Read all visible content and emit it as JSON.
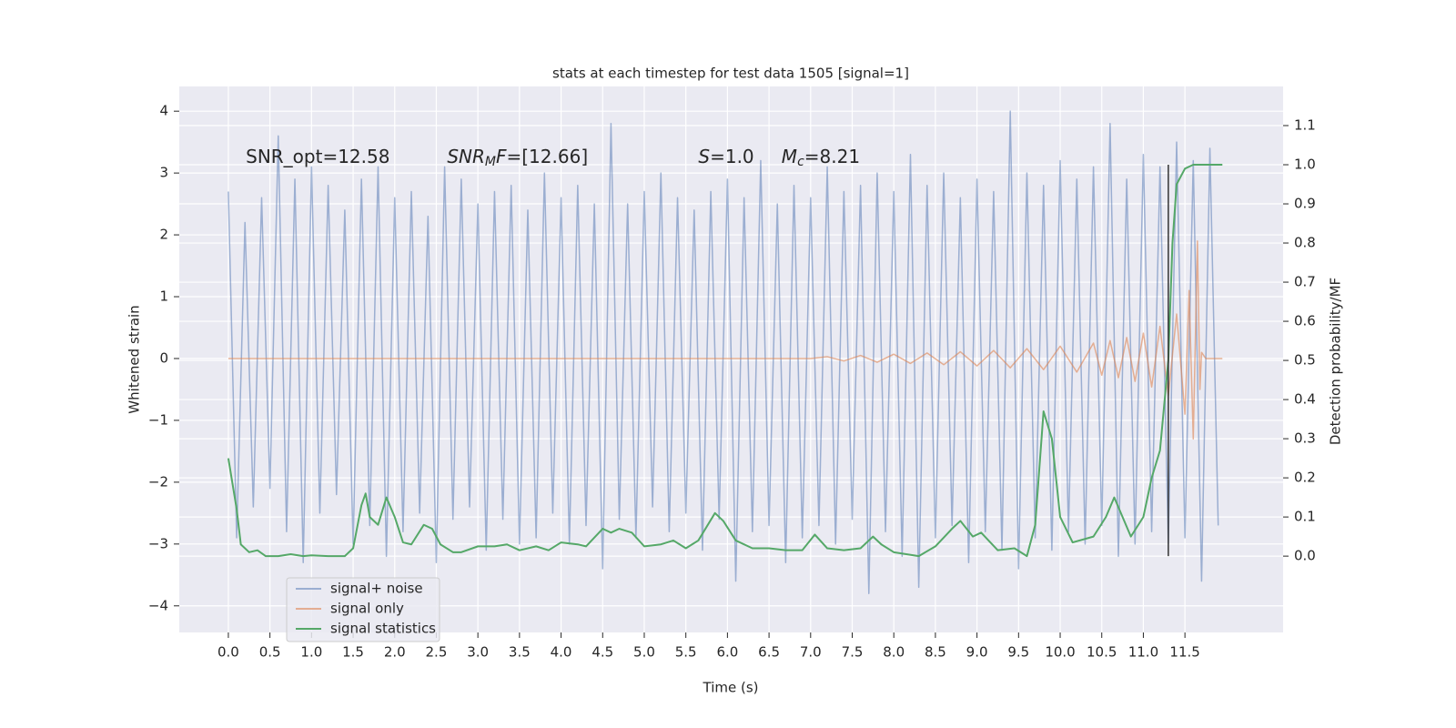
{
  "chart_data": {
    "type": "line",
    "title": "stats at each timestep for test data 1505 [signal=1]",
    "xlabel": "Time (s)",
    "ylabel": "Whitened strain",
    "y2label": "Detection probability/MF",
    "xlim": [
      -0.59,
      12.68
    ],
    "ylim": [
      -4.43,
      4.4
    ],
    "y2lim": [
      -0.195,
      1.2
    ],
    "xticks": [
      {
        "value": 0,
        "label": "0.0"
      },
      {
        "value": 0.5,
        "label": "0.5"
      },
      {
        "value": 1,
        "label": "1.0"
      },
      {
        "value": 1.5,
        "label": "1.5"
      },
      {
        "value": 2,
        "label": "2.0"
      },
      {
        "value": 2.5,
        "label": "2.5"
      },
      {
        "value": 3,
        "label": "3.0"
      },
      {
        "value": 3.5,
        "label": "3.5"
      },
      {
        "value": 4,
        "label": "4.0"
      },
      {
        "value": 4.5,
        "label": "4.5"
      },
      {
        "value": 5,
        "label": "5.0"
      },
      {
        "value": 5.5,
        "label": "5.5"
      },
      {
        "value": 6,
        "label": "6.0"
      },
      {
        "value": 6.5,
        "label": "6.5"
      },
      {
        "value": 7,
        "label": "7.0"
      },
      {
        "value": 7.5,
        "label": "7.5"
      },
      {
        "value": 8,
        "label": "8.0"
      },
      {
        "value": 8.5,
        "label": "8.5"
      },
      {
        "value": 9,
        "label": "9.0"
      },
      {
        "value": 9.5,
        "label": "9.5"
      },
      {
        "value": 10,
        "label": "10.0"
      },
      {
        "value": 10.5,
        "label": "10.5"
      },
      {
        "value": 11,
        "label": "11.0"
      },
      {
        "value": 11.5,
        "label": "11.5"
      }
    ],
    "yticks": [
      {
        "value": -4,
        "label": "−4"
      },
      {
        "value": -3,
        "label": "−3"
      },
      {
        "value": -2,
        "label": "−2"
      },
      {
        "value": -1,
        "label": "−1"
      },
      0,
      1,
      2,
      3,
      4
    ],
    "y2ticks": [
      {
        "value": 0,
        "label": "0.0"
      },
      {
        "value": 0.1,
        "label": "0.1"
      },
      {
        "value": 0.2,
        "label": "0.2"
      },
      {
        "value": 0.3,
        "label": "0.3"
      },
      {
        "value": 0.4,
        "label": "0.4"
      },
      {
        "value": 0.5,
        "label": "0.5"
      },
      {
        "value": 0.6,
        "label": "0.6"
      },
      {
        "value": 0.7,
        "label": "0.7"
      },
      {
        "value": 0.8,
        "label": "0.8"
      },
      {
        "value": 0.9,
        "label": "0.9"
      },
      {
        "value": 1,
        "label": "1.0"
      },
      {
        "value": 1.1,
        "label": "1.1"
      }
    ],
    "grid": true,
    "legend": "lower left",
    "series": [
      {
        "name": "signal+ noise",
        "color": "#4c72b0",
        "alpha": 0.5,
        "x": [
          0.0,
          0.1,
          0.2,
          0.3,
          0.4,
          0.5,
          0.6,
          0.7,
          0.8,
          0.9,
          1.0,
          1.1,
          1.2,
          1.3,
          1.4,
          1.5,
          1.6,
          1.7,
          1.8,
          1.9,
          2.0,
          2.1,
          2.2,
          2.3,
          2.4,
          2.5,
          2.6,
          2.7,
          2.8,
          2.9,
          3.0,
          3.1,
          3.2,
          3.3,
          3.4,
          3.5,
          3.6,
          3.7,
          3.8,
          3.9,
          4.0,
          4.1,
          4.2,
          4.3,
          4.4,
          4.5,
          4.6,
          4.7,
          4.8,
          4.9,
          5.0,
          5.1,
          5.2,
          5.3,
          5.4,
          5.5,
          5.6,
          5.7,
          5.8,
          5.9,
          6.0,
          6.1,
          6.2,
          6.3,
          6.4,
          6.5,
          6.6,
          6.7,
          6.8,
          6.9,
          7.0,
          7.1,
          7.2,
          7.3,
          7.4,
          7.5,
          7.6,
          7.7,
          7.8,
          7.9,
          8.0,
          8.1,
          8.2,
          8.3,
          8.4,
          8.5,
          8.6,
          8.7,
          8.8,
          8.9,
          9.0,
          9.1,
          9.2,
          9.3,
          9.4,
          9.5,
          9.6,
          9.7,
          9.8,
          9.9,
          10.0,
          10.1,
          10.2,
          10.3,
          10.4,
          10.5,
          10.6,
          10.7,
          10.8,
          10.9,
          11.0,
          11.1,
          11.2,
          11.3,
          11.4,
          11.5,
          11.6,
          11.7,
          11.8,
          11.9
        ],
        "values": [
          2.7,
          -2.9,
          2.2,
          -2.4,
          2.6,
          -2.1,
          3.6,
          -2.8,
          2.9,
          -3.3,
          3.1,
          -2.5,
          2.8,
          -2.2,
          2.4,
          -3.0,
          2.9,
          -2.7,
          3.1,
          -3.2,
          2.6,
          -2.8,
          2.7,
          -2.5,
          2.3,
          -3.3,
          3.1,
          -2.6,
          2.9,
          -2.4,
          2.5,
          -3.1,
          2.7,
          -2.6,
          2.8,
          -3.0,
          2.4,
          -2.9,
          3.0,
          -2.5,
          2.6,
          -3.0,
          2.8,
          -2.7,
          2.5,
          -3.4,
          3.8,
          -2.6,
          2.5,
          -2.9,
          2.7,
          -2.4,
          3.0,
          -2.8,
          2.6,
          -2.5,
          2.4,
          -3.1,
          2.7,
          -2.6,
          2.9,
          -3.6,
          2.6,
          -2.8,
          3.2,
          -2.7,
          2.5,
          -3.3,
          2.8,
          -2.9,
          2.6,
          -2.7,
          3.1,
          -3.0,
          2.7,
          -2.6,
          2.8,
          -3.8,
          3.0,
          -2.8,
          2.7,
          -3.2,
          3.3,
          -3.7,
          2.8,
          -2.9,
          3.0,
          -2.7,
          2.6,
          -3.3,
          2.9,
          -2.8,
          2.7,
          -3.1,
          4.0,
          -3.4,
          3.0,
          -2.9,
          2.8,
          -3.1,
          3.2,
          -2.8,
          2.9,
          -3.0,
          3.1,
          -2.7,
          3.8,
          -3.2,
          2.9,
          -3.0,
          3.3,
          -2.8,
          3.1,
          -3.0,
          3.5,
          -2.9,
          3.2,
          -3.6,
          3.4,
          -2.7
        ]
      },
      {
        "name": "signal only",
        "color": "#dd8452",
        "alpha": 0.6,
        "x": [
          0.0,
          7.0,
          7.2,
          7.4,
          7.6,
          7.8,
          8.0,
          8.2,
          8.4,
          8.6,
          8.8,
          9.0,
          9.2,
          9.4,
          9.6,
          9.8,
          10.0,
          10.2,
          10.4,
          10.5,
          10.6,
          10.7,
          10.8,
          10.9,
          11.0,
          11.1,
          11.2,
          11.3,
          11.4,
          11.5,
          11.55,
          11.6,
          11.65,
          11.68,
          11.7,
          11.75,
          11.95
        ],
        "values": [
          0,
          0,
          0.03,
          -0.04,
          0.05,
          -0.06,
          0.07,
          -0.08,
          0.09,
          -0.1,
          0.11,
          -0.12,
          0.13,
          -0.15,
          0.16,
          -0.18,
          0.2,
          -0.22,
          0.25,
          -0.27,
          0.29,
          -0.31,
          0.34,
          -0.37,
          0.41,
          -0.46,
          0.52,
          -0.6,
          0.72,
          -0.9,
          1.1,
          -1.3,
          1.9,
          -0.5,
          0.1,
          0,
          0
        ]
      },
      {
        "name": "signal statistics",
        "color": "#55a868",
        "alpha": 1,
        "axis": "y2",
        "x": [
          0.0,
          0.1,
          0.15,
          0.25,
          0.35,
          0.45,
          0.6,
          0.75,
          0.9,
          1.0,
          1.2,
          1.4,
          1.5,
          1.6,
          1.65,
          1.7,
          1.8,
          1.9,
          2.0,
          2.1,
          2.2,
          2.35,
          2.45,
          2.55,
          2.7,
          2.8,
          3.0,
          3.2,
          3.35,
          3.5,
          3.7,
          3.85,
          4.0,
          4.2,
          4.3,
          4.5,
          4.6,
          4.7,
          4.85,
          5.0,
          5.2,
          5.35,
          5.5,
          5.65,
          5.85,
          5.95,
          6.1,
          6.3,
          6.5,
          6.7,
          6.9,
          7.05,
          7.2,
          7.4,
          7.6,
          7.75,
          7.85,
          8.0,
          8.3,
          8.5,
          8.7,
          8.8,
          8.95,
          9.05,
          9.25,
          9.45,
          9.6,
          9.7,
          9.8,
          9.9,
          10.0,
          10.15,
          10.4,
          10.55,
          10.65,
          10.75,
          10.85,
          11.0,
          11.1,
          11.2,
          11.3,
          11.35,
          11.4,
          11.5,
          11.6,
          11.95
        ],
        "values": [
          0.25,
          0.12,
          0.03,
          0.01,
          0.015,
          0.0,
          0.0,
          0.005,
          0.0,
          0.002,
          0.0,
          0.0,
          0.02,
          0.13,
          0.16,
          0.1,
          0.08,
          0.15,
          0.1,
          0.035,
          0.03,
          0.08,
          0.07,
          0.03,
          0.01,
          0.01,
          0.025,
          0.025,
          0.03,
          0.015,
          0.025,
          0.015,
          0.035,
          0.03,
          0.025,
          0.07,
          0.06,
          0.07,
          0.06,
          0.025,
          0.03,
          0.04,
          0.02,
          0.04,
          0.11,
          0.09,
          0.04,
          0.02,
          0.02,
          0.015,
          0.015,
          0.055,
          0.02,
          0.015,
          0.02,
          0.05,
          0.03,
          0.01,
          0.0,
          0.025,
          0.07,
          0.09,
          0.05,
          0.06,
          0.015,
          0.02,
          0.0,
          0.08,
          0.37,
          0.3,
          0.1,
          0.035,
          0.05,
          0.1,
          0.15,
          0.1,
          0.05,
          0.1,
          0.2,
          0.27,
          0.5,
          0.8,
          0.95,
          0.99,
          1.0,
          1.0
        ]
      }
    ],
    "vline": {
      "x": 11.3,
      "ymin": 0,
      "ymax": 1.0,
      "axis": "y2",
      "color": "#333333"
    },
    "annotations": [
      {
        "x": 0.21,
        "y": 3.25,
        "parts": [
          {
            "text": "SNR_opt=12.58",
            "style": "normal"
          }
        ]
      },
      {
        "x": 2.63,
        "y": 3.25,
        "parts": [
          {
            "text": "SNR",
            "style": "italic"
          },
          {
            "text": "M",
            "style": "sub"
          },
          {
            "text": "F",
            "style": "italic"
          },
          {
            "text": "=[12.66]",
            "style": "normal"
          }
        ]
      },
      {
        "x": 5.65,
        "y": 3.25,
        "parts": [
          {
            "text": "S",
            "style": "italic"
          },
          {
            "text": "=1.0",
            "style": "normal"
          }
        ]
      },
      {
        "x": 6.65,
        "y": 3.25,
        "parts": [
          {
            "text": "M",
            "style": "italic"
          },
          {
            "text": "c",
            "style": "sub"
          },
          {
            "text": "=8.21",
            "style": "normal"
          }
        ]
      }
    ]
  }
}
